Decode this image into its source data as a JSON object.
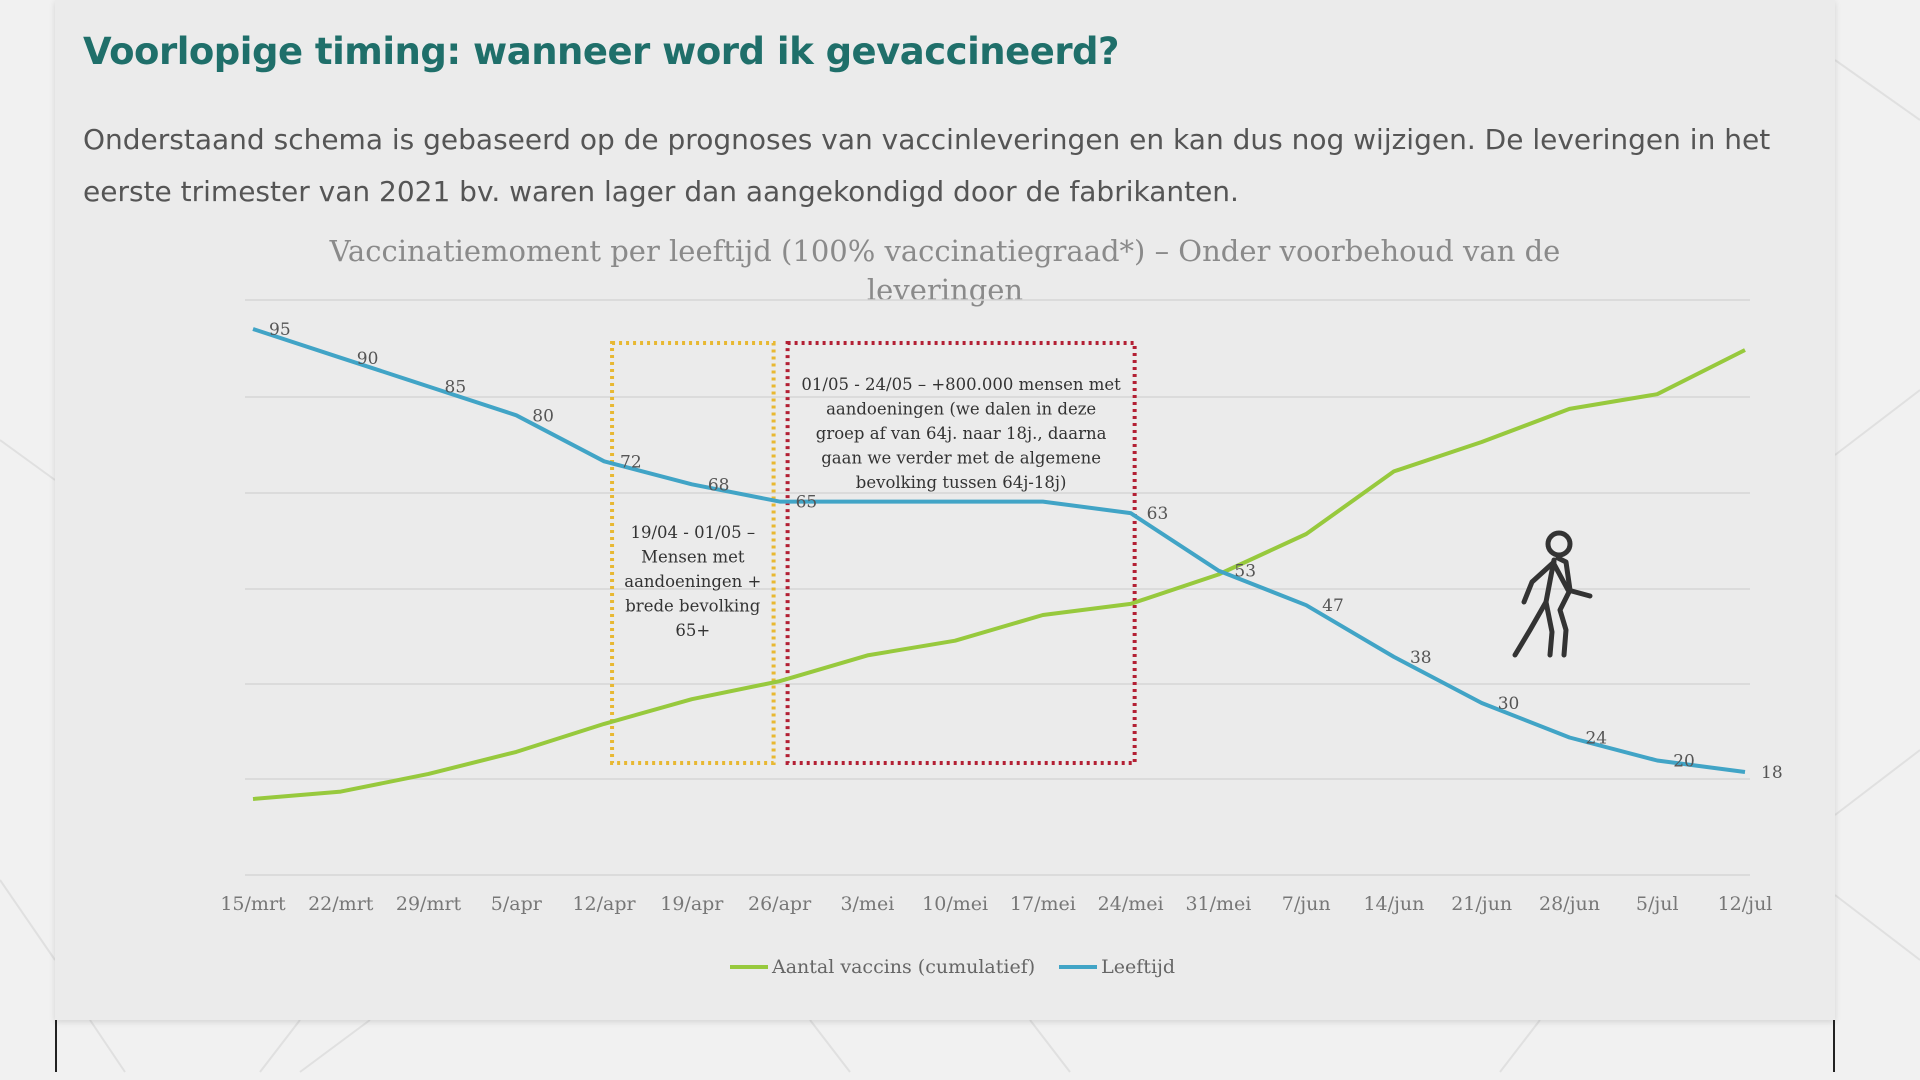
{
  "page": {
    "title": "Voorlopige timing: wanneer word ik gevaccineerd?",
    "intro": "Onderstaand schema is gebaseerd op de prognoses van vaccinleveringen en kan dus nog wijzigen. De leveringen in het eerste trimester van 2021 bv. waren lager dan aangekondigd door de fabrikanten."
  },
  "colors": {
    "title": "#1f6f6a",
    "green": "#97c93d",
    "blue": "#41a4c6",
    "yellow_box": "#e8b832",
    "red_box": "#b32034"
  },
  "icon": "person-walking-icon",
  "chart_data": {
    "type": "line",
    "title": "Vaccinatiemoment per leeftijd (100% vaccinatiegraad*) – Onder voorbehoud van de leveringen",
    "categories": [
      "15/mrt",
      "22/mrt",
      "29/mrt",
      "5/apr",
      "12/apr",
      "19/apr",
      "26/apr",
      "3/mei",
      "10/mei",
      "17/mei",
      "24/mei",
      "31/mei",
      "7/jun",
      "14/jun",
      "21/jun",
      "28/jun",
      "5/jul",
      "12/jul"
    ],
    "grid": true,
    "legend_position": "bottom",
    "series": [
      {
        "name": "Aantal vaccins (cumulatief)",
        "color": "#97c93d",
        "values": [
          0.3,
          0.5,
          0.98,
          1.58,
          2.34,
          3.01,
          3.5,
          4.2,
          4.6,
          5.3,
          5.6,
          6.4,
          7.5,
          9.2,
          10.0,
          10.9,
          11.3,
          12.5
        ]
      },
      {
        "name": "Leeftijd",
        "color": "#41a4c6",
        "values": [
          95,
          90,
          85,
          80,
          72,
          68,
          65,
          65,
          65,
          65,
          63,
          53,
          47,
          38,
          30,
          24,
          20,
          18
        ],
        "labels": [
          "95",
          "90",
          "85",
          "80",
          "72",
          "68",
          "65",
          "",
          "",
          "",
          "63",
          "53",
          "47",
          "38",
          "30",
          "24",
          "20",
          "18"
        ]
      }
    ],
    "annotations": [
      {
        "category_range": [
          "12/apr",
          "26/apr"
        ],
        "style": "dotted-yellow",
        "lines": [
          "19/04  - 01/05 –",
          "Mensen met",
          "aandoeningen +",
          "brede bevolking",
          "65+"
        ]
      },
      {
        "category_range": [
          "26/apr",
          "24/mei"
        ],
        "style": "dotted-red",
        "lines": [
          "01/05  - 24/05 – +800.000 mensen met",
          "aandoeningen (we dalen in deze",
          "groep af van 64j. naar 18j., daarna",
          "gaan we verder met de algemene",
          "bevolking tussen 64j-18j)"
        ]
      }
    ]
  }
}
